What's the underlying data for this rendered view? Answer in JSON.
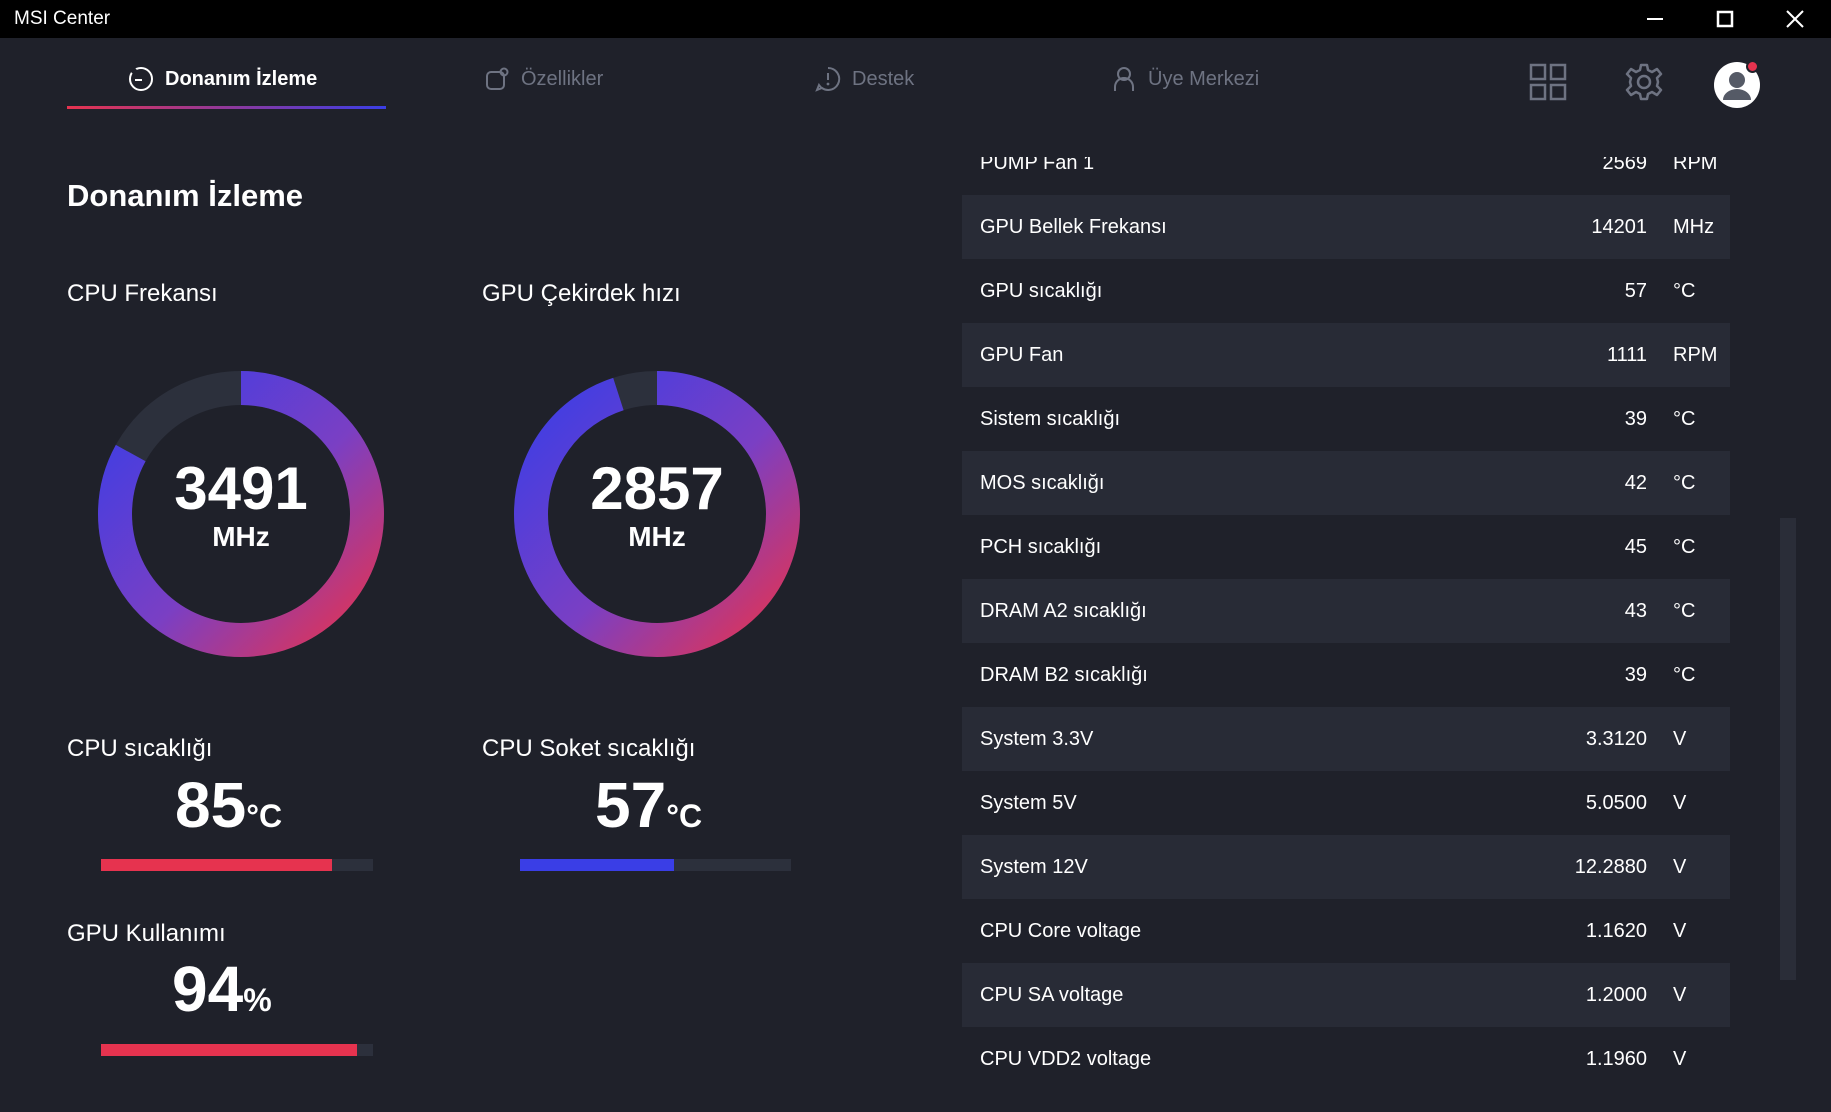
{
  "window": {
    "title": "MSI Center"
  },
  "nav": {
    "tabs": [
      {
        "label": "Donanım İzleme",
        "icon": "gauge-icon",
        "active": true
      },
      {
        "label": "Özellikler",
        "icon": "features-icon",
        "active": false
      },
      {
        "label": "Destek",
        "icon": "support-icon",
        "active": false
      },
      {
        "label": "Üye Merkezi",
        "icon": "user-icon",
        "active": false
      }
    ]
  },
  "page": {
    "title": "Donanım İzleme"
  },
  "gauges": [
    {
      "label": "CPU Frekansı",
      "value": "3491",
      "unit": "MHz",
      "fill": 0.83
    },
    {
      "label": "GPU Çekirdek hızı",
      "value": "2857",
      "unit": "MHz",
      "fill": 0.95
    }
  ],
  "metrics": {
    "cpu_temp": {
      "label": "CPU sıcaklığı",
      "value": "85",
      "unit": "°C",
      "fill": 0.85,
      "color": "#e6334f"
    },
    "cpu_socket_temp": {
      "label": "CPU Soket sıcaklığı",
      "value": "57",
      "unit": "°C",
      "fill": 0.57,
      "color": "#3a3ee6"
    },
    "gpu_usage": {
      "label": "GPU Kullanımı",
      "value": "94",
      "unit": "%",
      "fill": 0.94,
      "color": "#e6334f"
    }
  },
  "sensors": [
    {
      "name": "PUMP Fan 1",
      "value": "2569",
      "unit": "RPM"
    },
    {
      "name": "GPU Bellek Frekansı",
      "value": "14201",
      "unit": "MHz"
    },
    {
      "name": "GPU sıcaklığı",
      "value": "57",
      "unit": "°C"
    },
    {
      "name": "GPU Fan",
      "value": "1111",
      "unit": "RPM"
    },
    {
      "name": "Sistem sıcaklığı",
      "value": "39",
      "unit": "°C"
    },
    {
      "name": "MOS sıcaklığı",
      "value": "42",
      "unit": "°C"
    },
    {
      "name": "PCH sıcaklığı",
      "value": "45",
      "unit": "°C"
    },
    {
      "name": "DRAM A2 sıcaklığı",
      "value": "43",
      "unit": "°C"
    },
    {
      "name": "DRAM B2 sıcaklığı",
      "value": "39",
      "unit": "°C"
    },
    {
      "name": "System 3.3V",
      "value": "3.3120",
      "unit": "V"
    },
    {
      "name": "System 5V",
      "value": "5.0500",
      "unit": "V"
    },
    {
      "name": "System 12V",
      "value": "12.2880",
      "unit": "V"
    },
    {
      "name": "CPU Core voltage",
      "value": "1.1620",
      "unit": "V"
    },
    {
      "name": "CPU SA voltage",
      "value": "1.2000",
      "unit": "V"
    },
    {
      "name": "CPU VDD2 voltage",
      "value": "1.1960",
      "unit": "V"
    }
  ],
  "colors": {
    "accent_red": "#e6334f",
    "accent_blue": "#3a3ee6",
    "background": "#1f212a"
  }
}
